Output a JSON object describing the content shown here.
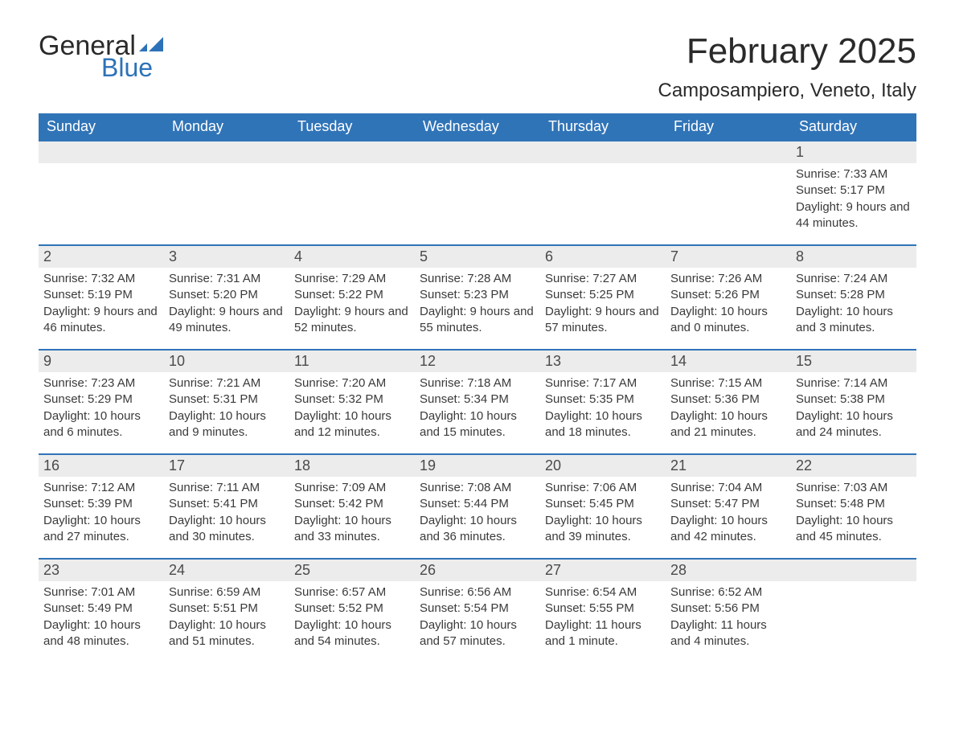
{
  "logo": {
    "text1": "General",
    "text2": "Blue",
    "flag_color": "#2d72b8"
  },
  "title": "February 2025",
  "location": "Camposampiero, Veneto, Italy",
  "colors": {
    "header_bg": "#3074b8",
    "header_text": "#ffffff",
    "row_border": "#3074b8",
    "daynum_bg": "#ececec",
    "text": "#3a3a3a"
  },
  "weekdays": [
    "Sunday",
    "Monday",
    "Tuesday",
    "Wednesday",
    "Thursday",
    "Friday",
    "Saturday"
  ],
  "weeks": [
    [
      {
        "day": null
      },
      {
        "day": null
      },
      {
        "day": null
      },
      {
        "day": null
      },
      {
        "day": null
      },
      {
        "day": null
      },
      {
        "day": 1,
        "sunrise": "7:33 AM",
        "sunset": "5:17 PM",
        "daylight": "9 hours and 44 minutes."
      }
    ],
    [
      {
        "day": 2,
        "sunrise": "7:32 AM",
        "sunset": "5:19 PM",
        "daylight": "9 hours and 46 minutes."
      },
      {
        "day": 3,
        "sunrise": "7:31 AM",
        "sunset": "5:20 PM",
        "daylight": "9 hours and 49 minutes."
      },
      {
        "day": 4,
        "sunrise": "7:29 AM",
        "sunset": "5:22 PM",
        "daylight": "9 hours and 52 minutes."
      },
      {
        "day": 5,
        "sunrise": "7:28 AM",
        "sunset": "5:23 PM",
        "daylight": "9 hours and 55 minutes."
      },
      {
        "day": 6,
        "sunrise": "7:27 AM",
        "sunset": "5:25 PM",
        "daylight": "9 hours and 57 minutes."
      },
      {
        "day": 7,
        "sunrise": "7:26 AM",
        "sunset": "5:26 PM",
        "daylight": "10 hours and 0 minutes."
      },
      {
        "day": 8,
        "sunrise": "7:24 AM",
        "sunset": "5:28 PM",
        "daylight": "10 hours and 3 minutes."
      }
    ],
    [
      {
        "day": 9,
        "sunrise": "7:23 AM",
        "sunset": "5:29 PM",
        "daylight": "10 hours and 6 minutes."
      },
      {
        "day": 10,
        "sunrise": "7:21 AM",
        "sunset": "5:31 PM",
        "daylight": "10 hours and 9 minutes."
      },
      {
        "day": 11,
        "sunrise": "7:20 AM",
        "sunset": "5:32 PM",
        "daylight": "10 hours and 12 minutes."
      },
      {
        "day": 12,
        "sunrise": "7:18 AM",
        "sunset": "5:34 PM",
        "daylight": "10 hours and 15 minutes."
      },
      {
        "day": 13,
        "sunrise": "7:17 AM",
        "sunset": "5:35 PM",
        "daylight": "10 hours and 18 minutes."
      },
      {
        "day": 14,
        "sunrise": "7:15 AM",
        "sunset": "5:36 PM",
        "daylight": "10 hours and 21 minutes."
      },
      {
        "day": 15,
        "sunrise": "7:14 AM",
        "sunset": "5:38 PM",
        "daylight": "10 hours and 24 minutes."
      }
    ],
    [
      {
        "day": 16,
        "sunrise": "7:12 AM",
        "sunset": "5:39 PM",
        "daylight": "10 hours and 27 minutes."
      },
      {
        "day": 17,
        "sunrise": "7:11 AM",
        "sunset": "5:41 PM",
        "daylight": "10 hours and 30 minutes."
      },
      {
        "day": 18,
        "sunrise": "7:09 AM",
        "sunset": "5:42 PM",
        "daylight": "10 hours and 33 minutes."
      },
      {
        "day": 19,
        "sunrise": "7:08 AM",
        "sunset": "5:44 PM",
        "daylight": "10 hours and 36 minutes."
      },
      {
        "day": 20,
        "sunrise": "7:06 AM",
        "sunset": "5:45 PM",
        "daylight": "10 hours and 39 minutes."
      },
      {
        "day": 21,
        "sunrise": "7:04 AM",
        "sunset": "5:47 PM",
        "daylight": "10 hours and 42 minutes."
      },
      {
        "day": 22,
        "sunrise": "7:03 AM",
        "sunset": "5:48 PM",
        "daylight": "10 hours and 45 minutes."
      }
    ],
    [
      {
        "day": 23,
        "sunrise": "7:01 AM",
        "sunset": "5:49 PM",
        "daylight": "10 hours and 48 minutes."
      },
      {
        "day": 24,
        "sunrise": "6:59 AM",
        "sunset": "5:51 PM",
        "daylight": "10 hours and 51 minutes."
      },
      {
        "day": 25,
        "sunrise": "6:57 AM",
        "sunset": "5:52 PM",
        "daylight": "10 hours and 54 minutes."
      },
      {
        "day": 26,
        "sunrise": "6:56 AM",
        "sunset": "5:54 PM",
        "daylight": "10 hours and 57 minutes."
      },
      {
        "day": 27,
        "sunrise": "6:54 AM",
        "sunset": "5:55 PM",
        "daylight": "11 hours and 1 minute."
      },
      {
        "day": 28,
        "sunrise": "6:52 AM",
        "sunset": "5:56 PM",
        "daylight": "11 hours and 4 minutes."
      },
      {
        "day": null
      }
    ]
  ],
  "labels": {
    "sunrise": "Sunrise: ",
    "sunset": "Sunset: ",
    "daylight": "Daylight: "
  }
}
